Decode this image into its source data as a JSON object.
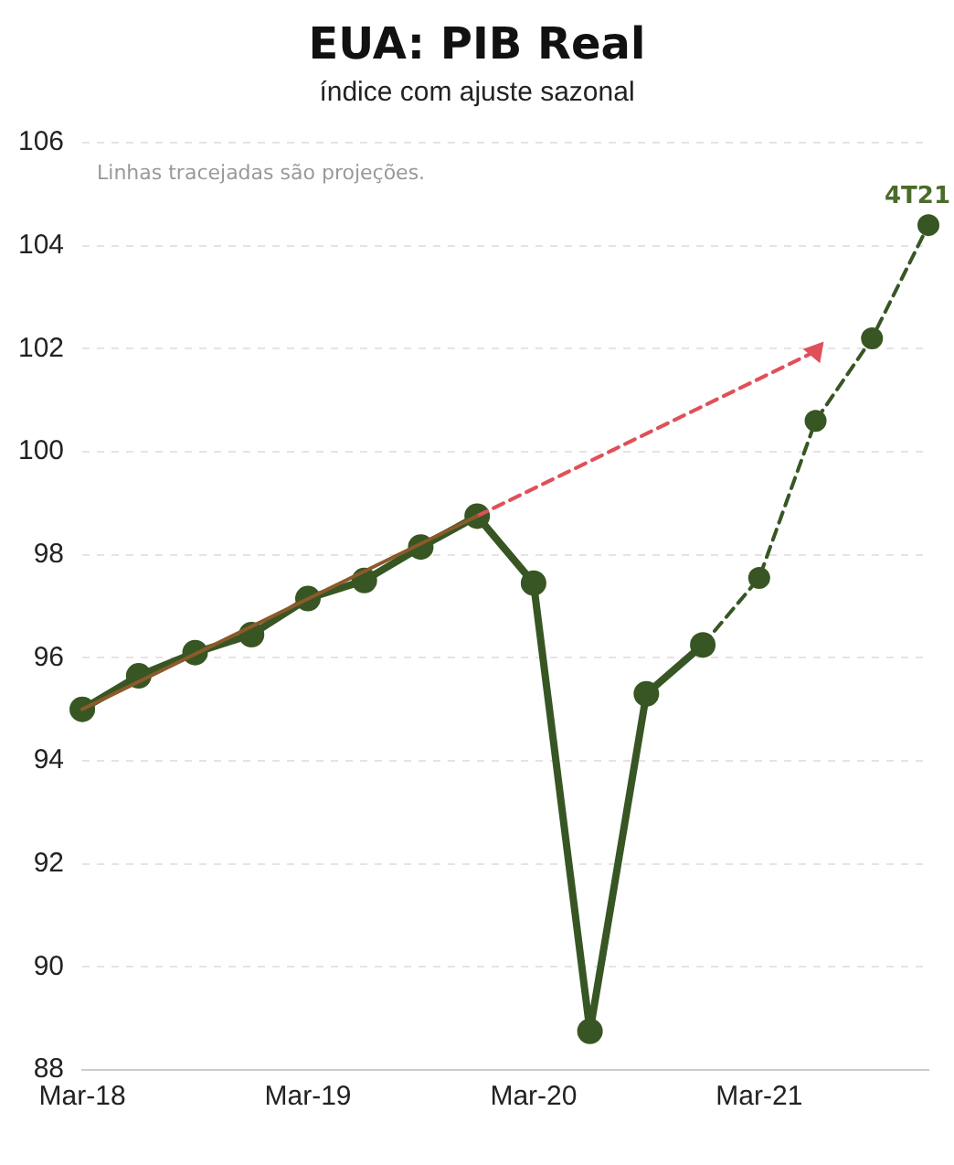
{
  "chart_data": {
    "type": "line",
    "title": "EUA: PIB Real",
    "subtitle": "índice com ajuste sazonal",
    "categories": [
      "Mar-18",
      null,
      null,
      null,
      "Mar-19",
      null,
      null,
      null,
      "Mar-20",
      null,
      null,
      null,
      "Mar-21",
      null,
      null,
      null
    ],
    "series": [
      {
        "color": "#8b5a2b",
        "marker": "none",
        "line_style": "solid",
        "values": [
          95.0,
          null,
          null,
          null,
          null,
          null,
          null,
          98.75,
          null,
          null,
          null,
          null,
          null,
          null,
          null,
          null
        ]
      },
      {
        "color": "#e0505a",
        "marker": "triangle",
        "line_style": "dashed",
        "values": [
          null,
          null,
          null,
          null,
          null,
          null,
          null,
          98.75,
          null,
          null,
          null,
          null,
          null,
          101.95,
          null,
          null
        ]
      },
      {
        "color": "#375623",
        "marker": "circle",
        "line_style": "dashed",
        "values": [
          null,
          null,
          null,
          null,
          null,
          null,
          null,
          null,
          null,
          null,
          null,
          96.25,
          97.55,
          100.6,
          102.2,
          104.4
        ]
      },
      {
        "color": "#375623",
        "marker": "circle",
        "line_style": "solid",
        "values": [
          95.0,
          95.65,
          96.1,
          96.45,
          97.15,
          97.5,
          98.15,
          98.75,
          97.45,
          88.75,
          95.3,
          96.25,
          null,
          null,
          null,
          null
        ]
      }
    ],
    "ylim": [
      88,
      106
    ],
    "yticks": [
      88,
      90,
      92,
      94,
      96,
      98,
      100,
      102,
      104,
      106
    ],
    "grid": "y",
    "legend": false,
    "annotations": [
      "Linhas tracejadas são projeções.",
      {
        "text": "4T21",
        "y": 104.4
      }
    ]
  }
}
